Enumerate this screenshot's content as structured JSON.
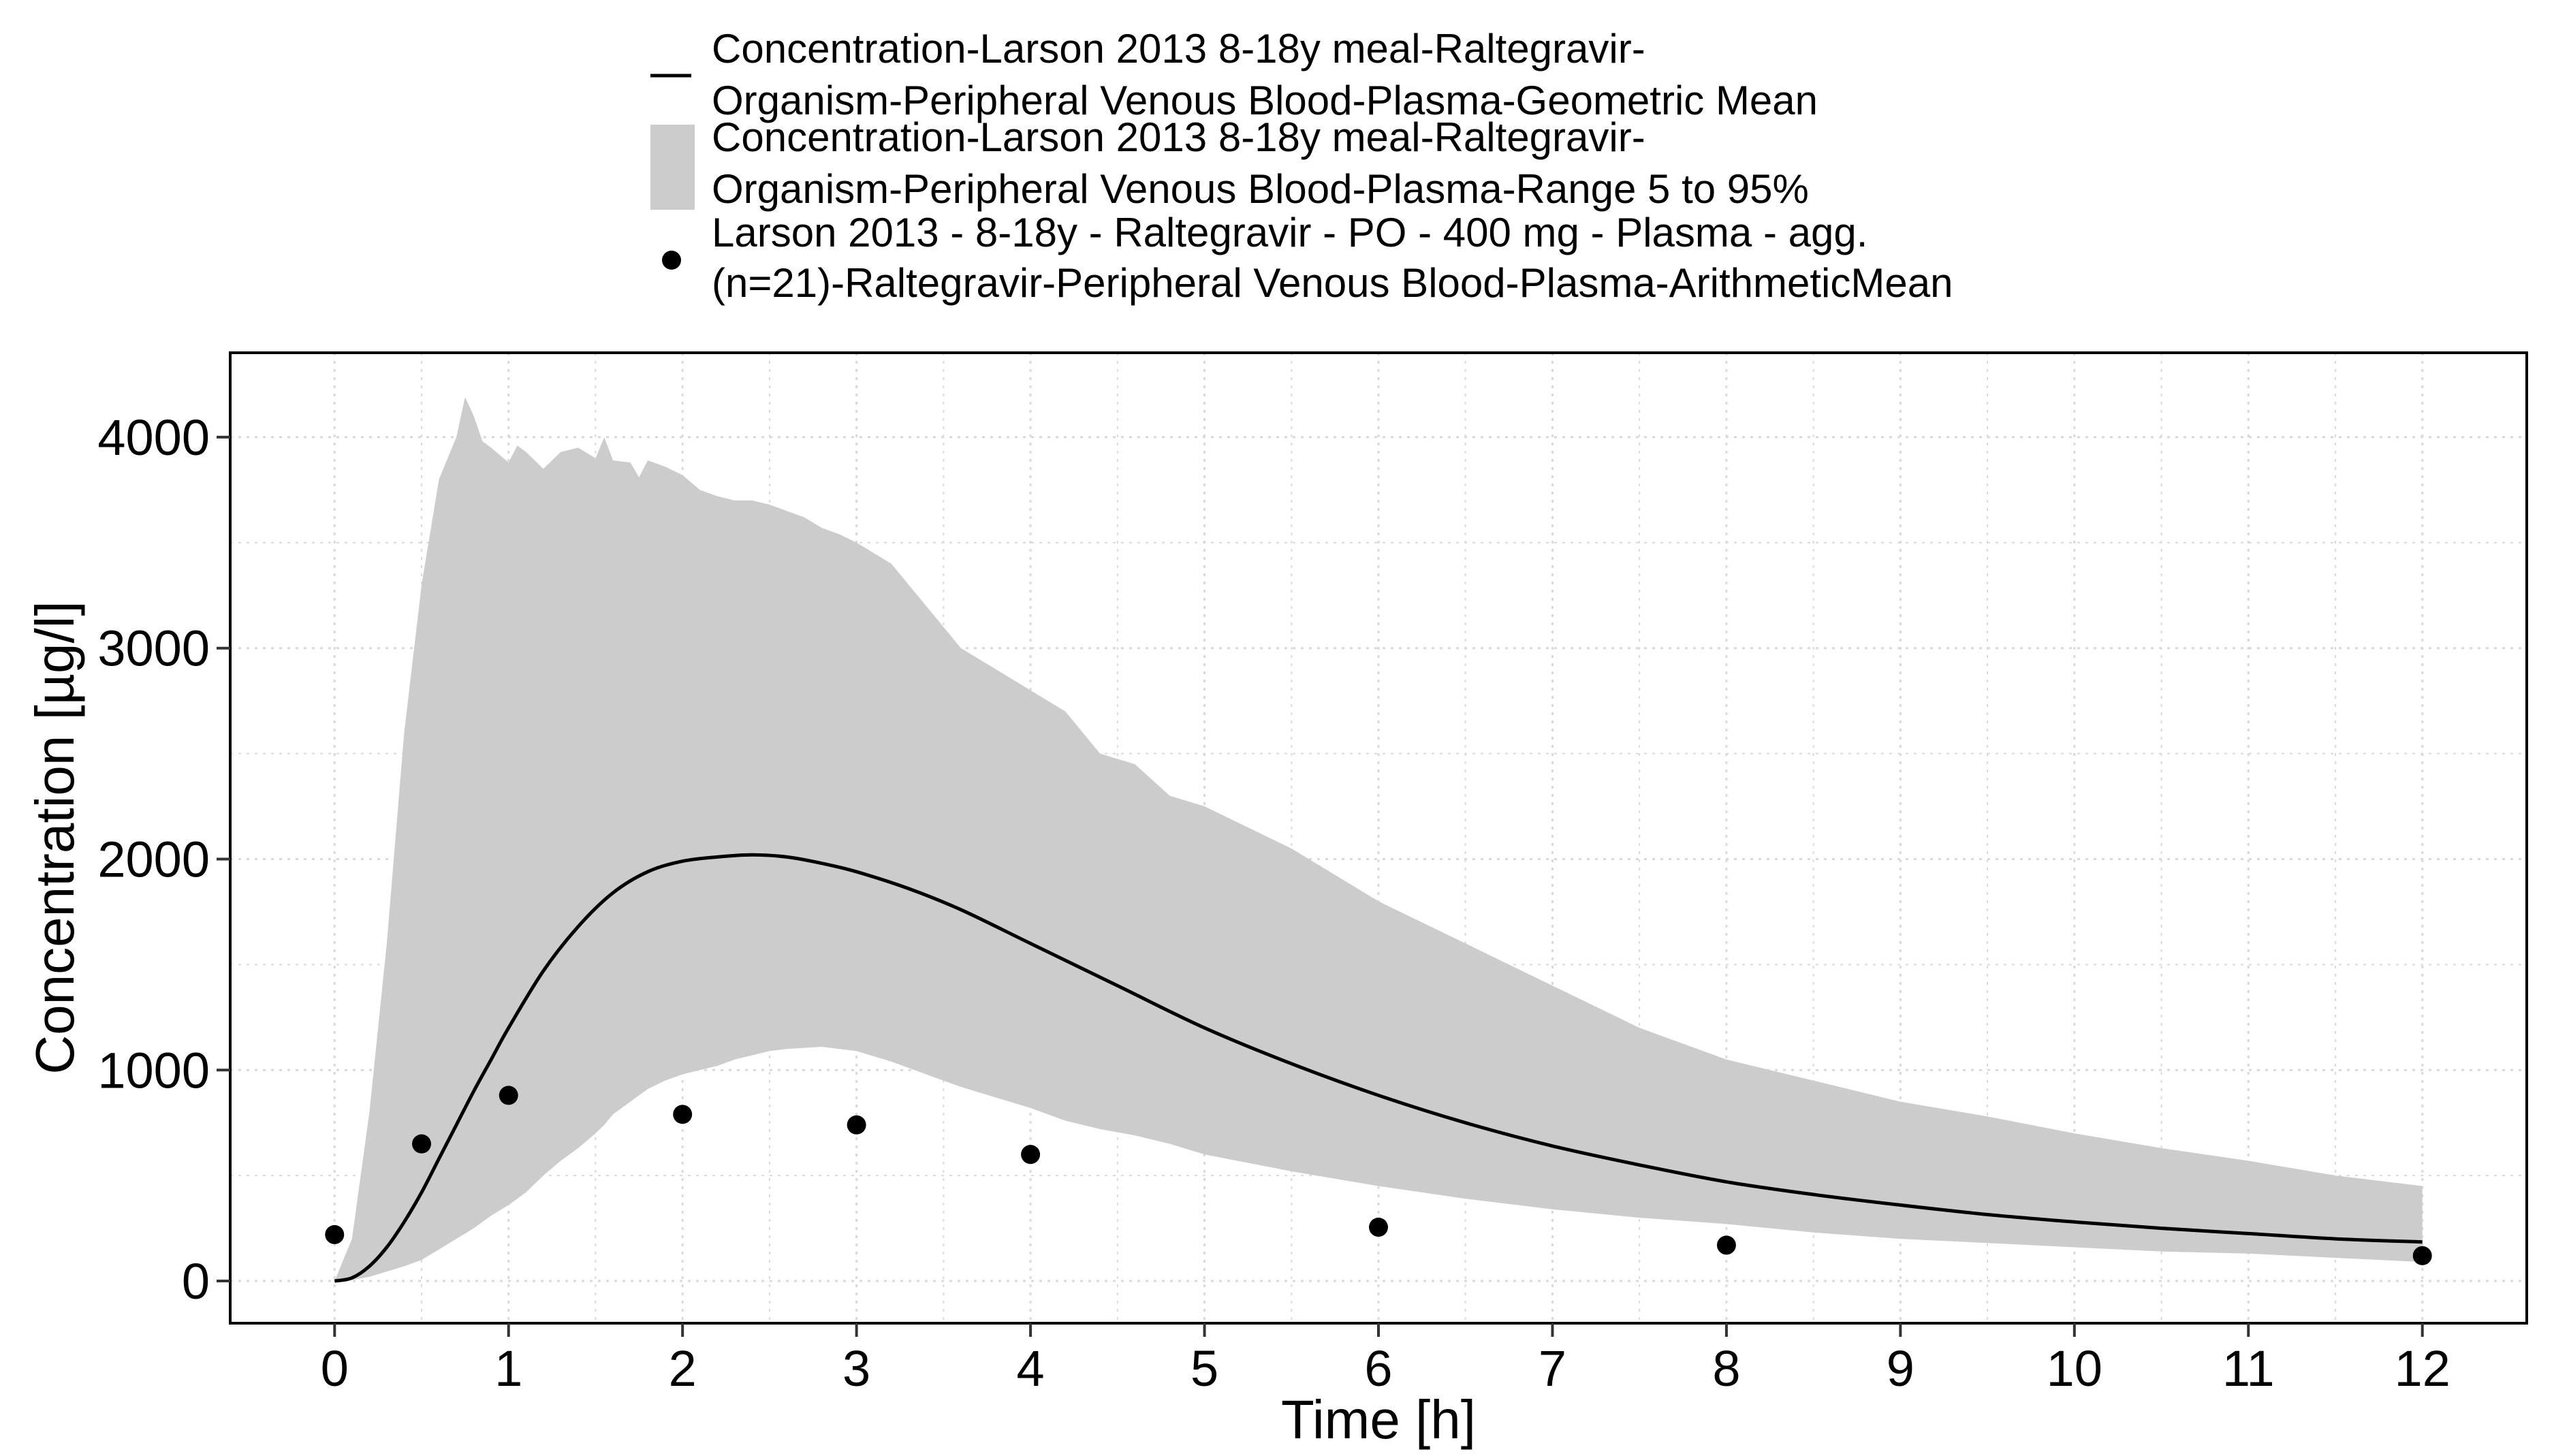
{
  "chart_data": {
    "type": "line",
    "xlabel": "Time [h]",
    "ylabel": "Concentration [µg/l]",
    "xlim": [
      -0.6,
      12.6
    ],
    "ylim": [
      -200,
      4400
    ],
    "x_ticks": [
      0,
      1,
      2,
      3,
      4,
      5,
      6,
      7,
      8,
      9,
      10,
      11,
      12
    ],
    "y_ticks": [
      0,
      1000,
      2000,
      3000,
      4000
    ],
    "grid": true,
    "legend_position": "top",
    "colors": {
      "line": "#000000",
      "band": "#cccccc",
      "points": "#000000",
      "grid": "#d9d9d9"
    },
    "series": [
      {
        "name": "Concentration-Larson 2013 8-18y meal-Raltegravir-Organism-Peripheral Venous Blood-Plasma-Geometric Mean",
        "legend_lines": [
          "Concentration-Larson 2013 8-18y meal-Raltegravir-",
          "Organism-Peripheral Venous Blood-Plasma-Geometric Mean"
        ],
        "type": "line",
        "x": [
          0,
          0.1,
          0.2,
          0.3,
          0.4,
          0.5,
          0.6,
          0.7,
          0.8,
          0.9,
          1.0,
          1.2,
          1.4,
          1.6,
          1.8,
          2.0,
          2.2,
          2.4,
          2.6,
          2.8,
          3.0,
          3.3,
          3.6,
          4.0,
          4.5,
          5.0,
          5.5,
          6.0,
          6.5,
          7.0,
          7.5,
          8.0,
          8.5,
          9.0,
          9.5,
          10.0,
          10.5,
          11.0,
          11.5,
          12.0
        ],
        "y": [
          0,
          15,
          70,
          160,
          280,
          420,
          580,
          740,
          900,
          1050,
          1200,
          1470,
          1680,
          1840,
          1940,
          1990,
          2010,
          2020,
          2010,
          1980,
          1940,
          1860,
          1760,
          1600,
          1400,
          1200,
          1030,
          880,
          750,
          640,
          550,
          470,
          410,
          360,
          315,
          280,
          250,
          225,
          200,
          185
        ]
      },
      {
        "name": "Concentration-Larson 2013 8-18y meal-Raltegravir-Organism-Peripheral Venous Blood-Plasma-Range 5 to 95%",
        "legend_lines": [
          "Concentration-Larson 2013 8-18y meal-Raltegravir-",
          "Organism-Peripheral Venous Blood-Plasma-Range 5 to 95%"
        ],
        "type": "area",
        "x": [
          0,
          0.1,
          0.2,
          0.3,
          0.4,
          0.5,
          0.6,
          0.7,
          0.75,
          0.8,
          0.85,
          0.9,
          1.0,
          1.05,
          1.1,
          1.2,
          1.3,
          1.4,
          1.5,
          1.55,
          1.6,
          1.7,
          1.75,
          1.8,
          1.9,
          2.0,
          2.1,
          2.2,
          2.3,
          2.4,
          2.5,
          2.6,
          2.7,
          2.8,
          2.9,
          3.0,
          3.2,
          3.4,
          3.6,
          3.8,
          4.0,
          4.2,
          4.4,
          4.6,
          4.8,
          5.0,
          5.5,
          6.0,
          6.5,
          7.0,
          7.5,
          8.0,
          8.5,
          9.0,
          9.5,
          10.0,
          10.5,
          11.0,
          11.5,
          12.0
        ],
        "upper": [
          0,
          200,
          800,
          1600,
          2600,
          3300,
          3800,
          4000,
          4190,
          4100,
          3980,
          3950,
          3880,
          3960,
          3930,
          3850,
          3930,
          3950,
          3900,
          4000,
          3890,
          3880,
          3810,
          3890,
          3860,
          3820,
          3750,
          3720,
          3700,
          3700,
          3680,
          3650,
          3620,
          3570,
          3540,
          3500,
          3400,
          3200,
          3000,
          2900,
          2800,
          2700,
          2500,
          2450,
          2300,
          2250,
          2050,
          1800,
          1600,
          1400,
          1200,
          1050,
          950,
          850,
          780,
          700,
          630,
          570,
          500,
          450
        ],
        "lower": [
          0,
          5,
          20,
          45,
          70,
          100,
          150,
          200,
          225,
          250,
          280,
          310,
          360,
          390,
          420,
          500,
          570,
          630,
          700,
          740,
          790,
          850,
          880,
          910,
          950,
          980,
          1000,
          1020,
          1050,
          1070,
          1090,
          1100,
          1105,
          1110,
          1100,
          1090,
          1040,
          980,
          920,
          870,
          820,
          760,
          720,
          690,
          650,
          600,
          520,
          450,
          390,
          340,
          300,
          270,
          230,
          200,
          180,
          160,
          140,
          130,
          110,
          90
        ]
      },
      {
        "name": "Larson 2013 - 8-18y - Raltegravir - PO - 400 mg - Plasma - agg. (n=21)-Raltegravir-Peripheral Venous Blood-Plasma-ArithmeticMean",
        "legend_lines": [
          "Larson 2013 - 8-18y - Raltegravir - PO - 400 mg - Plasma - agg.",
          "(n=21)-Raltegravir-Peripheral Venous Blood-Plasma-ArithmeticMean"
        ],
        "type": "scatter",
        "x": [
          0,
          0.5,
          1,
          2,
          3,
          4,
          6,
          8,
          12
        ],
        "y": [
          220,
          650,
          880,
          790,
          740,
          600,
          255,
          170,
          120
        ]
      }
    ]
  }
}
